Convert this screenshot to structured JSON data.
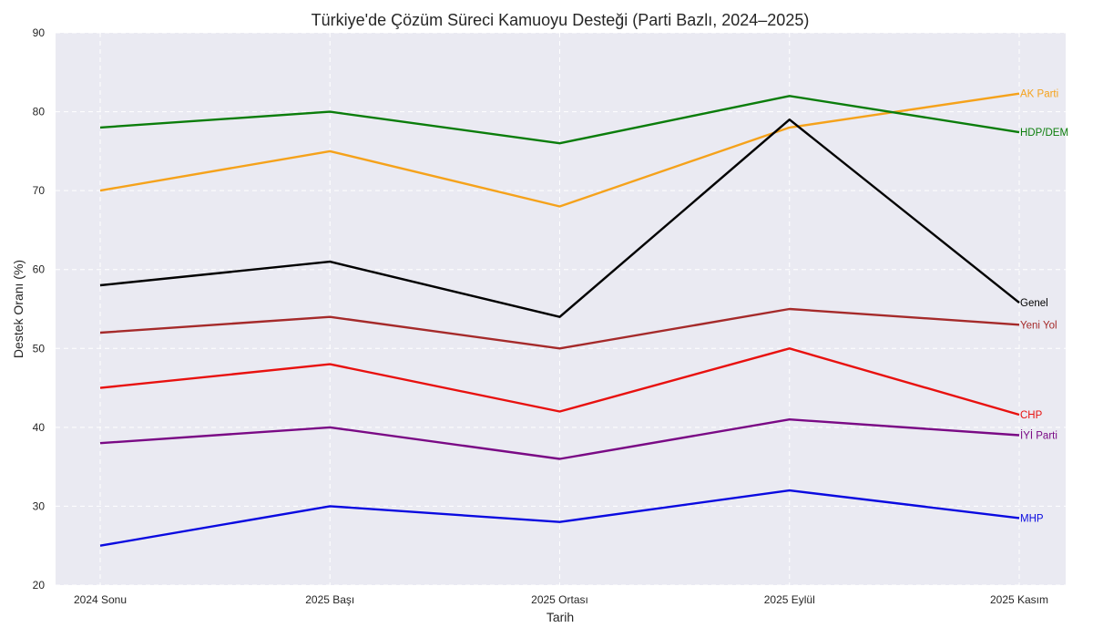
{
  "chart_data": {
    "type": "line",
    "title": "Türkiye'de Çözüm Süreci Kamuoyu Desteği (Parti Bazlı, 2024–2025)",
    "xlabel": "Tarih",
    "ylabel": "Destek Oranı (%)",
    "ylim": [
      20,
      90
    ],
    "yticks": [
      20,
      30,
      40,
      50,
      60,
      70,
      80,
      90
    ],
    "grid": true,
    "legend": "labels at line ends",
    "categories": [
      "2024 Sonu",
      "2025 Başı",
      "2025 Ortası",
      "2025 Eylül",
      "2025 Kasım"
    ],
    "series": [
      {
        "name": "AK Parti",
        "color": "#f5a21b",
        "values": [
          70,
          75,
          68,
          78,
          82.3
        ]
      },
      {
        "name": "HDP/DEM",
        "color": "#0b7d0b",
        "values": [
          78,
          80,
          76,
          82,
          77.4
        ]
      },
      {
        "name": "Genel",
        "color": "#000000",
        "values": [
          58,
          61,
          54,
          79,
          55.8
        ]
      },
      {
        "name": "Yeni Yol",
        "color": "#a52a2a",
        "values": [
          52,
          54,
          50,
          55,
          53
        ]
      },
      {
        "name": "CHP",
        "color": "#e8110f",
        "values": [
          45,
          48,
          42,
          50,
          41.6
        ]
      },
      {
        "name": "İYİ Parti",
        "color": "#7a0a85",
        "values": [
          38,
          40,
          36,
          41,
          39
        ]
      },
      {
        "name": "MHP",
        "color": "#0a0ae0",
        "values": [
          25,
          30,
          28,
          32,
          28.5
        ]
      }
    ]
  }
}
